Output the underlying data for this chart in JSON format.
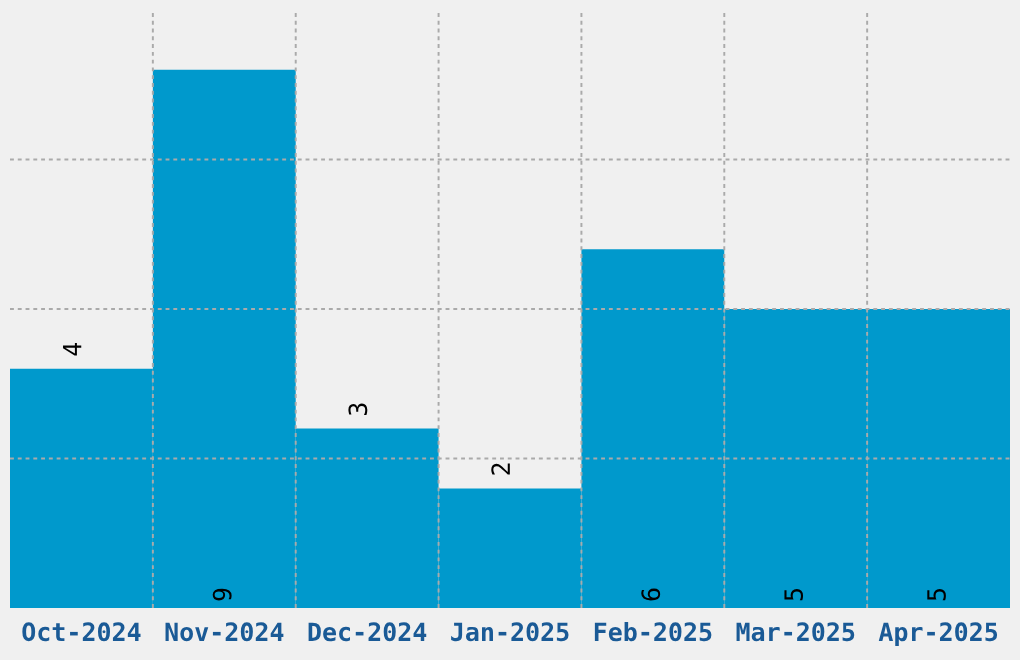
{
  "chart_data": {
    "type": "bar",
    "categories": [
      "Oct-2024",
      "Nov-2024",
      "Dec-2024",
      "Jan-2025",
      "Feb-2025",
      "Mar-2025",
      "Apr-2025"
    ],
    "values": [
      4,
      9,
      3,
      2,
      6,
      5,
      5
    ],
    "color": "#0099cc",
    "ylim": [
      0,
      10
    ],
    "yticks": [
      {
        "value": 2.5,
        "label": null
      },
      {
        "value": 5,
        "label": null
      },
      {
        "value": 7.5,
        "label": null
      }
    ],
    "grid": true,
    "data_labels": true,
    "tick_labels": "x"
  }
}
